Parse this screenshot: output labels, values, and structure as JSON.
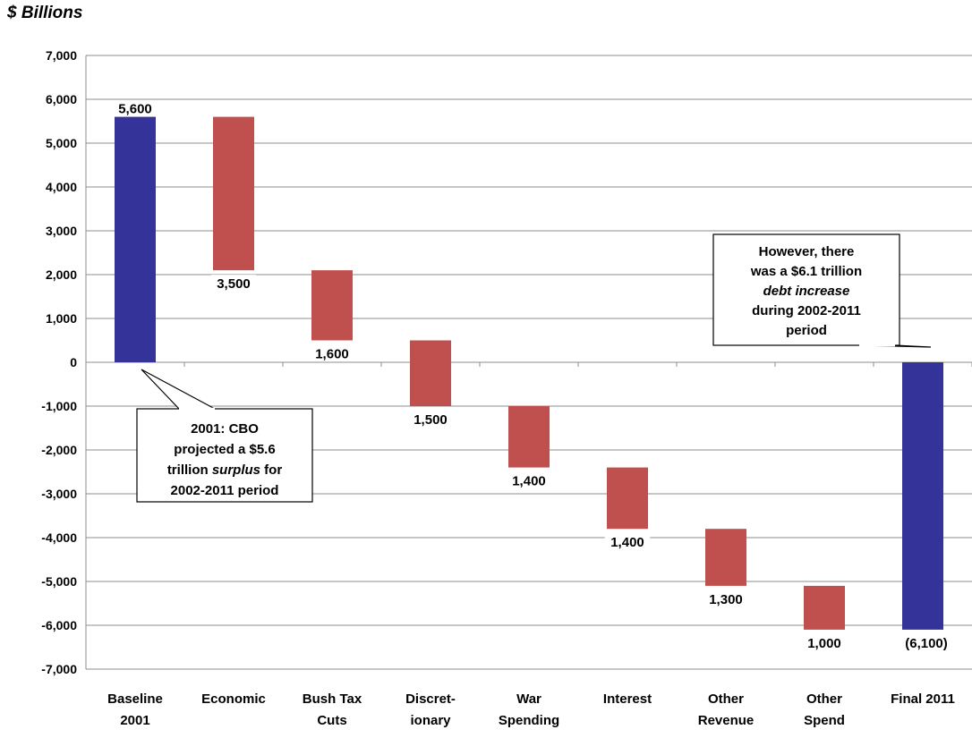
{
  "chart_data": {
    "type": "bar",
    "subtype": "waterfall",
    "unit_label": "$ Billions",
    "ylim": [
      -7000,
      7000
    ],
    "y_ticks": [
      "7,000",
      "6,000",
      "5,000",
      "4,000",
      "3,000",
      "2,000",
      "1,000",
      "0",
      "-1,000",
      "-2,000",
      "-3,000",
      "-4,000",
      "-5,000",
      "-6,000",
      "-7,000"
    ],
    "y_tick_values": [
      7000,
      6000,
      5000,
      4000,
      3000,
      2000,
      1000,
      0,
      -1000,
      -2000,
      -3000,
      -4000,
      -5000,
      -6000,
      -7000
    ],
    "grid": true,
    "categories": [
      [
        "Baseline",
        "2001"
      ],
      [
        "Economic"
      ],
      [
        "Bush Tax",
        "Cuts"
      ],
      [
        "Discret-",
        "ionary"
      ],
      [
        "War",
        "Spending"
      ],
      [
        "Interest"
      ],
      [
        "Other",
        "Revenue"
      ],
      [
        "Other",
        "Spend"
      ],
      [
        "Final 2011"
      ]
    ],
    "bars": [
      {
        "start": 0,
        "end": 5600,
        "label": "5,600",
        "color": "#333399"
      },
      {
        "start": 5600,
        "end": 2100,
        "label": "3,500",
        "color": "#c0504d"
      },
      {
        "start": 2100,
        "end": 500,
        "label": "1,600",
        "color": "#c0504d"
      },
      {
        "start": 500,
        "end": -1000,
        "label": "1,500",
        "color": "#c0504d"
      },
      {
        "start": -1000,
        "end": -2400,
        "label": "1,400",
        "color": "#c0504d"
      },
      {
        "start": -2400,
        "end": -3800,
        "label": "1,400",
        "color": "#c0504d"
      },
      {
        "start": -3800,
        "end": -5100,
        "label": "1,300",
        "color": "#c0504d"
      },
      {
        "start": -5100,
        "end": -6100,
        "label": "1,000",
        "color": "#c0504d"
      },
      {
        "start": 0,
        "end": -6100,
        "label": "(6,100)",
        "color": "#333399"
      }
    ],
    "annotations": [
      {
        "id": "surplus-callout",
        "lines": [
          [
            {
              "t": "2001: CBO",
              "i": false
            }
          ],
          [
            {
              "t": "projected a $5.6",
              "i": false
            }
          ],
          [
            {
              "t": "trillion ",
              "i": false
            },
            {
              "t": "surplus",
              "i": true
            },
            {
              "t": " for",
              "i": false
            }
          ],
          [
            {
              "t": "2002-2011 period",
              "i": false
            }
          ]
        ]
      },
      {
        "id": "debt-callout",
        "lines": [
          [
            {
              "t": "However, there",
              "i": false
            }
          ],
          [
            {
              "t": "was a $6.1 trillion",
              "i": false
            }
          ],
          [
            {
              "t": "debt increase",
              "i": true
            }
          ],
          [
            {
              "t": "during 2002-2011",
              "i": false
            }
          ],
          [
            {
              "t": "period",
              "i": false
            }
          ]
        ]
      }
    ]
  }
}
